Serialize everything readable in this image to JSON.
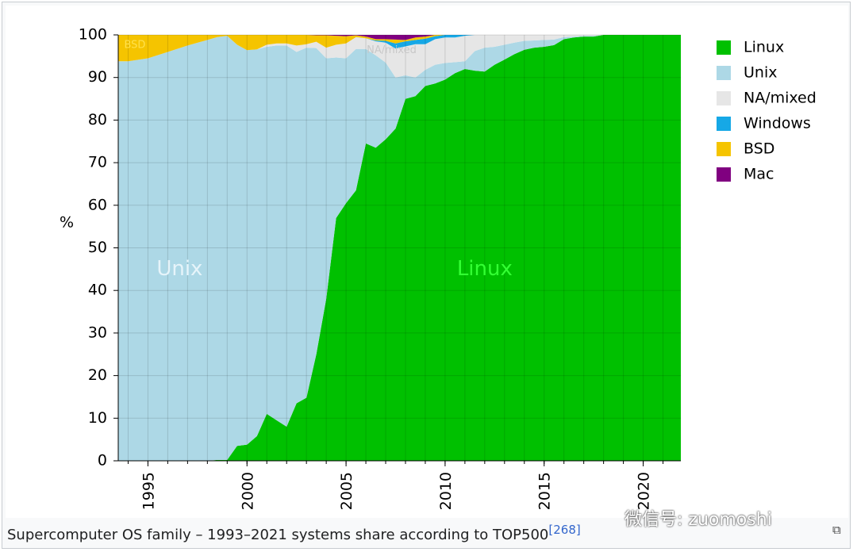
{
  "caption": {
    "text": "Supercomputer OS family – 1993–2021 systems share according to TOP500",
    "ref": "[268]"
  },
  "watermark": "微信号: zuomoshi",
  "enlarge_icon": "enlarge-icon",
  "chart_data": {
    "type": "area",
    "stacked": true,
    "title": "",
    "ylabel": "%",
    "xlabel": "",
    "xlim": [
      1993.5,
      2021.9
    ],
    "ylim": [
      0,
      100
    ],
    "xticks": [
      "1995",
      "2000",
      "2005",
      "2010",
      "2015",
      "2020"
    ],
    "yticks": [
      "0",
      "10",
      "20",
      "30",
      "40",
      "50",
      "60",
      "70",
      "80",
      "90",
      "100"
    ],
    "grid": true,
    "legend_position": "right",
    "legend": [
      "Linux",
      "Unix",
      "NA/mixed",
      "Windows",
      "BSD",
      "Mac"
    ],
    "area_labels": [
      {
        "text": "Unix",
        "series": "Unix",
        "x": 1996.6,
        "y": 45
      },
      {
        "text": "Linux",
        "series": "Linux",
        "x": 2012.0,
        "y": 45
      },
      {
        "text": "NA/mixed",
        "series": "NA/mixed",
        "x": 2007.3,
        "y": 96.4
      },
      {
        "text": "BSD",
        "series": "BSD",
        "x": 1993.8,
        "y": 97.6
      }
    ],
    "x": [
      1993.5,
      1994.0,
      1995.0,
      1996.0,
      1997.0,
      1998.0,
      1998.5,
      1999.0,
      1999.5,
      2000.0,
      2000.5,
      2001.0,
      2001.5,
      2002.0,
      2002.5,
      2003.0,
      2003.5,
      2004.0,
      2004.5,
      2005.0,
      2005.5,
      2006.0,
      2006.5,
      2007.0,
      2007.5,
      2008.0,
      2008.5,
      2009.0,
      2009.5,
      2010.0,
      2010.5,
      2011.0,
      2011.5,
      2012.0,
      2012.5,
      2013.0,
      2013.5,
      2014.0,
      2014.5,
      2015.0,
      2015.5,
      2016.0,
      2016.5,
      2017.0,
      2017.5,
      2018.0,
      2018.5,
      2019.0,
      2019.5,
      2020.0,
      2020.5,
      2021.0,
      2021.9
    ],
    "series": [
      {
        "name": "Linux",
        "color": "#00c000",
        "values": [
          0,
          0,
          0,
          0,
          0,
          0,
          0.2,
          0.2,
          3.5,
          3.8,
          5.8,
          11,
          9.5,
          8,
          13.5,
          14.8,
          25,
          38,
          57,
          60.5,
          63.5,
          74.5,
          73.5,
          75.5,
          78,
          85,
          85.6,
          88,
          88.6,
          89.5,
          91,
          92,
          91.6,
          91.4,
          93,
          94.2,
          95.5,
          96.5,
          97,
          97.2,
          97.6,
          99,
          99.4,
          99.6,
          99.6,
          100,
          100,
          100,
          100,
          100,
          100,
          100,
          100
        ]
      },
      {
        "name": "Unix",
        "color": "#add8e6",
        "values": [
          93.8,
          93.8,
          94.5,
          96,
          97.5,
          98.8,
          99.3,
          99.6,
          94.2,
          92.6,
          90.8,
          86.2,
          88,
          89.5,
          82.5,
          82.2,
          71.9,
          56.5,
          37.7,
          34,
          33.2,
          22.2,
          21.7,
          18,
          12,
          5.5,
          4.4,
          3.8,
          4.4,
          3.9,
          2.6,
          1.8,
          4.6,
          5.6,
          4.2,
          3.5,
          2.7,
          2.1,
          1.7,
          1.6,
          1.3,
          0.5,
          0.2,
          0.2,
          0.2,
          0,
          0,
          0,
          0,
          0,
          0,
          0,
          0
        ]
      },
      {
        "name": "NA/mixed",
        "color": "#e6e6e6",
        "values": [
          0,
          0,
          0,
          0,
          0,
          0,
          0,
          0,
          0,
          0,
          0,
          0.5,
          0.5,
          0.5,
          1.5,
          0.8,
          1.5,
          2.5,
          3,
          3.5,
          2.8,
          2.5,
          3.3,
          4.7,
          6.8,
          6.8,
          7.8,
          6,
          6,
          6,
          5.8,
          6,
          3.8,
          3,
          2.8,
          2.3,
          1.8,
          1.4,
          1.3,
          1.2,
          1.1,
          0.5,
          0.4,
          0.2,
          0.2,
          0,
          0,
          0,
          0,
          0,
          0,
          0,
          0
        ]
      },
      {
        "name": "Windows",
        "color": "#16a8e6",
        "values": [
          0,
          0,
          0,
          0,
          0,
          0,
          0,
          0,
          0,
          0,
          0,
          0,
          0,
          0,
          0,
          0,
          0,
          0,
          0,
          0,
          0,
          0,
          0.2,
          0.4,
          1.2,
          1.2,
          1,
          1.3,
          0.7,
          0.6,
          0.6,
          0.2,
          0,
          0,
          0,
          0,
          0,
          0,
          0,
          0,
          0,
          0,
          0,
          0,
          0,
          0,
          0,
          0,
          0,
          0,
          0,
          0,
          0
        ]
      },
      {
        "name": "BSD",
        "color": "#f5c400",
        "values": [
          6.2,
          6.2,
          5.5,
          4,
          2.5,
          1.2,
          0.5,
          0.2,
          2.3,
          3.6,
          3.4,
          2.3,
          2,
          2,
          2.5,
          2.2,
          1.5,
          2.9,
          2.1,
          1.7,
          0.4,
          0.4,
          0.3,
          0.4,
          0.9,
          0.3,
          0.6,
          0.5,
          0.3,
          0,
          0,
          0,
          0,
          0,
          0,
          0,
          0,
          0,
          0,
          0,
          0,
          0,
          0,
          0,
          0,
          0,
          0,
          0,
          0,
          0,
          0,
          0,
          0
        ]
      },
      {
        "name": "Mac",
        "color": "#800080",
        "values": [
          0,
          0,
          0,
          0,
          0,
          0,
          0,
          0,
          0,
          0,
          0,
          0,
          0,
          0,
          0,
          0,
          0.1,
          0.1,
          0.2,
          0.3,
          0.1,
          0.4,
          1,
          1,
          1.1,
          1.2,
          0.6,
          0.4,
          0,
          0,
          0,
          0,
          0,
          0,
          0,
          0,
          0,
          0,
          0,
          0,
          0,
          0,
          0,
          0,
          0,
          0,
          0,
          0,
          0,
          0,
          0,
          0,
          0
        ]
      }
    ]
  }
}
